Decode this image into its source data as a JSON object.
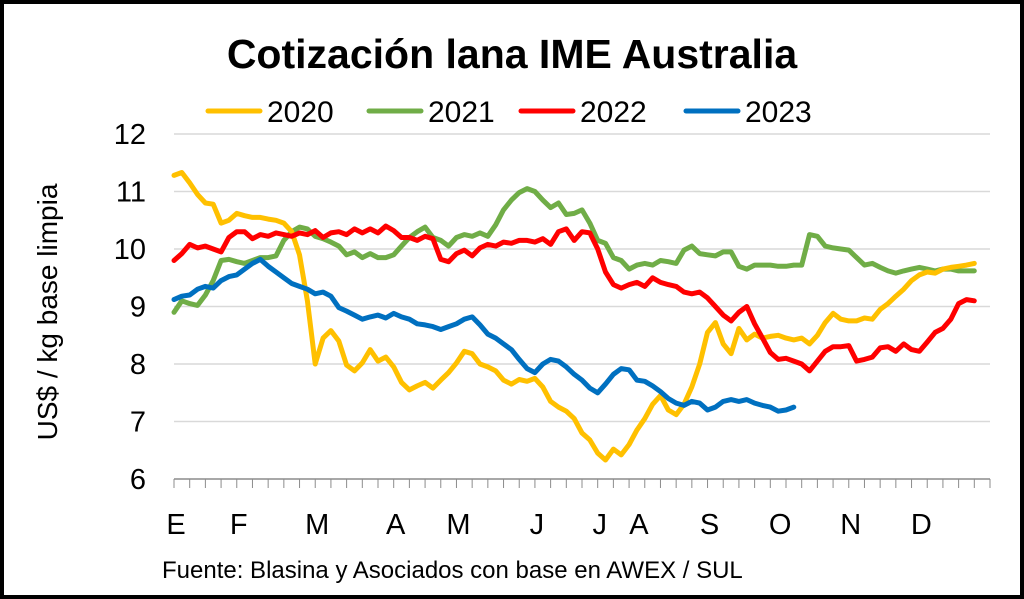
{
  "chart_data": {
    "type": "line",
    "title": "Cotización lana IME Australia",
    "ylabel": "US$ / kg base limpia",
    "xlabel": "",
    "source": "Fuente: Blasina y Asociados con base en AWEX / SUL",
    "ylim": [
      6,
      12
    ],
    "yticks": [
      "6",
      "7",
      "8",
      "9",
      "10",
      "11",
      "12"
    ],
    "xlim": [
      0,
      52
    ],
    "categories": [
      "E",
      "F",
      "M",
      "A",
      "M",
      "J",
      "J",
      "A",
      "S",
      "O",
      "N",
      "D"
    ],
    "category_weeks": [
      0,
      4,
      9,
      14,
      18,
      23,
      27,
      29.5,
      34,
      38.5,
      43,
      47.5
    ],
    "grid": true,
    "legend_position": "top",
    "series": [
      {
        "name": "2020",
        "color": "#FFC000",
        "x": [
          0,
          0.5,
          1,
          1.5,
          2,
          2.5,
          3,
          3.5,
          4,
          4.5,
          5,
          5.5,
          6,
          6.5,
          7,
          7.5,
          8,
          8.5,
          9,
          9.5,
          10,
          10.5,
          11,
          11.5,
          12,
          12.5,
          13,
          13.5,
          14,
          14.5,
          15,
          15.5,
          16,
          16.5,
          17,
          17.5,
          18,
          18.5,
          19,
          19.5,
          20,
          20.5,
          21,
          21.5,
          22,
          22.5,
          23,
          23.5,
          24,
          24.5,
          25,
          25.5,
          26,
          26.5,
          27,
          27.5,
          28,
          28.5,
          29,
          29.5,
          30,
          30.5,
          31,
          31.5,
          32,
          32.5,
          33,
          33.5,
          34,
          34.5,
          35,
          35.5,
          36,
          36.5,
          37,
          37.5,
          38,
          38.5,
          39,
          39.5,
          40,
          40.5,
          41,
          41.5,
          42,
          42.5,
          43,
          43.5,
          44,
          44.5,
          45,
          45.5,
          46,
          46.5,
          47,
          47.5,
          48,
          48.5,
          49,
          49.5,
          50,
          50.5,
          51
        ],
        "y": [
          11.28,
          11.33,
          11.15,
          10.95,
          10.8,
          10.78,
          10.45,
          10.5,
          10.62,
          10.58,
          10.55,
          10.55,
          10.52,
          10.5,
          10.45,
          10.3,
          9.9,
          9.1,
          8.0,
          8.45,
          8.58,
          8.4,
          7.98,
          7.88,
          8.02,
          8.25,
          8.05,
          8.12,
          7.95,
          7.68,
          7.55,
          7.62,
          7.68,
          7.58,
          7.72,
          7.85,
          8.02,
          8.22,
          8.18,
          8.0,
          7.95,
          7.88,
          7.72,
          7.65,
          7.73,
          7.7,
          7.75,
          7.6,
          7.35,
          7.25,
          7.18,
          7.05,
          6.8,
          6.68,
          6.45,
          6.33,
          6.52,
          6.42,
          6.6,
          6.85,
          7.05,
          7.3,
          7.45,
          7.2,
          7.12,
          7.3,
          7.6,
          8.0,
          8.55,
          8.72,
          8.35,
          8.18,
          8.62,
          8.42,
          8.52,
          8.45,
          8.48,
          8.5,
          8.45,
          8.42,
          8.45,
          8.35,
          8.5,
          8.72,
          8.88,
          8.78,
          8.75,
          8.75,
          8.8,
          8.78,
          8.95,
          9.05,
          9.18,
          9.3,
          9.45,
          9.55,
          9.6,
          9.58,
          9.65,
          9.68,
          9.7,
          9.72,
          9.75
        ]
      },
      {
        "name": "2021",
        "color": "#70AD47",
        "x": [
          0,
          0.5,
          1,
          1.5,
          2,
          2.5,
          3,
          3.5,
          4,
          4.5,
          5,
          5.5,
          6,
          6.5,
          7,
          7.5,
          8,
          8.5,
          9,
          9.5,
          10,
          10.5,
          11,
          11.5,
          12,
          12.5,
          13,
          13.5,
          14,
          14.5,
          15,
          15.5,
          16,
          16.5,
          17,
          17.5,
          18,
          18.5,
          19,
          19.5,
          20,
          20.5,
          21,
          21.5,
          22,
          22.5,
          23,
          23.5,
          24,
          24.5,
          25,
          25.5,
          26,
          26.5,
          27,
          27.5,
          28,
          28.5,
          29,
          29.5,
          30,
          30.5,
          31,
          31.5,
          32,
          32.5,
          33,
          33.5,
          34,
          34.5,
          35,
          35.5,
          36,
          36.5,
          37,
          37.5,
          38,
          38.5,
          39,
          39.5,
          40,
          40.5,
          41,
          41.5,
          42,
          42.5,
          43,
          43.5,
          44,
          44.5,
          45,
          45.5,
          46,
          46.5,
          47,
          47.5,
          48,
          48.5,
          49,
          49.5,
          50,
          50.5,
          51
        ],
        "y": [
          8.9,
          9.1,
          9.05,
          9.02,
          9.2,
          9.45,
          9.8,
          9.82,
          9.78,
          9.75,
          9.8,
          9.85,
          9.85,
          9.88,
          10.15,
          10.3,
          10.38,
          10.35,
          10.22,
          10.18,
          10.12,
          10.05,
          9.9,
          9.95,
          9.85,
          9.92,
          9.85,
          9.85,
          9.9,
          10.05,
          10.2,
          10.3,
          10.38,
          10.2,
          10.15,
          10.05,
          10.2,
          10.25,
          10.22,
          10.28,
          10.22,
          10.42,
          10.68,
          10.85,
          10.98,
          11.05,
          11.0,
          10.85,
          10.72,
          10.8,
          10.6,
          10.62,
          10.68,
          10.45,
          10.15,
          10.1,
          9.85,
          9.8,
          9.65,
          9.72,
          9.75,
          9.72,
          9.8,
          9.78,
          9.75,
          9.98,
          10.05,
          9.92,
          9.9,
          9.88,
          9.95,
          9.95,
          9.7,
          9.65,
          9.72,
          9.72,
          9.72,
          9.7,
          9.7,
          9.72,
          9.72,
          10.25,
          10.22,
          10.05,
          10.02,
          10.0,
          9.98,
          9.85,
          9.72,
          9.75,
          9.68,
          9.62,
          9.58,
          9.62,
          9.65,
          9.68,
          9.65,
          9.62,
          9.65,
          9.65,
          9.62,
          9.62,
          9.62
        ]
      },
      {
        "name": "2022",
        "color": "#FF0000",
        "x": [
          0,
          0.5,
          1,
          1.5,
          2,
          2.5,
          3,
          3.5,
          4,
          4.5,
          5,
          5.5,
          6,
          6.5,
          7,
          7.5,
          8,
          8.5,
          9,
          9.5,
          10,
          10.5,
          11,
          11.5,
          12,
          12.5,
          13,
          13.5,
          14,
          14.5,
          15,
          15.5,
          16,
          16.5,
          17,
          17.5,
          18,
          18.5,
          19,
          19.5,
          20,
          20.5,
          21,
          21.5,
          22,
          22.5,
          23,
          23.5,
          24,
          24.5,
          25,
          25.5,
          26,
          26.5,
          27,
          27.5,
          28,
          28.5,
          29,
          29.5,
          30,
          30.5,
          31,
          31.5,
          32,
          32.5,
          33,
          33.5,
          34,
          34.5,
          35,
          35.5,
          36,
          36.5,
          37,
          37.5,
          38,
          38.5,
          39,
          39.5,
          40,
          40.5,
          41,
          41.5,
          42,
          42.5,
          43,
          43.5,
          44,
          44.5,
          45,
          45.5,
          46,
          46.5,
          47,
          47.5,
          48,
          48.5,
          49,
          49.5,
          50,
          50.5,
          51
        ],
        "y": [
          9.8,
          9.92,
          10.08,
          10.02,
          10.05,
          10.0,
          9.95,
          10.2,
          10.3,
          10.3,
          10.18,
          10.25,
          10.22,
          10.28,
          10.25,
          10.22,
          10.28,
          10.25,
          10.32,
          10.2,
          10.28,
          10.3,
          10.25,
          10.35,
          10.28,
          10.35,
          10.28,
          10.4,
          10.32,
          10.2,
          10.2,
          10.15,
          10.22,
          10.18,
          9.82,
          9.78,
          9.92,
          9.98,
          9.88,
          10.02,
          10.08,
          10.05,
          10.12,
          10.1,
          10.15,
          10.15,
          10.12,
          10.18,
          10.08,
          10.3,
          10.35,
          10.15,
          10.3,
          10.28,
          10.0,
          9.6,
          9.38,
          9.32,
          9.38,
          9.42,
          9.35,
          9.5,
          9.42,
          9.38,
          9.35,
          9.25,
          9.22,
          9.25,
          9.15,
          9.0,
          8.85,
          8.75,
          8.9,
          9.0,
          8.7,
          8.45,
          8.2,
          8.08,
          8.1,
          8.05,
          8.0,
          7.88,
          8.05,
          8.22,
          8.3,
          8.3,
          8.32,
          8.05,
          8.08,
          8.12,
          8.28,
          8.3,
          8.22,
          8.35,
          8.25,
          8.22,
          8.38,
          8.55,
          8.62,
          8.78,
          9.05,
          9.12,
          9.1
        ]
      },
      {
        "name": "2023",
        "color": "#0070C0",
        "x": [
          0,
          0.5,
          1,
          1.5,
          2,
          2.5,
          3,
          3.5,
          4,
          4.5,
          5,
          5.5,
          6,
          6.5,
          7,
          7.5,
          8,
          8.5,
          9,
          9.5,
          10,
          10.5,
          11,
          11.5,
          12,
          12.5,
          13,
          13.5,
          14,
          14.5,
          15,
          15.5,
          16,
          16.5,
          17,
          17.5,
          18,
          18.5,
          19,
          19.5,
          20,
          20.5,
          21,
          21.5,
          22,
          22.5,
          23,
          23.5,
          24,
          24.5,
          25,
          25.5,
          26,
          26.5,
          27,
          27.5,
          28,
          28.5,
          29,
          29.5,
          30,
          30.5,
          31,
          31.5,
          32,
          32.5,
          33,
          33.5,
          34,
          34.5,
          35,
          35.5,
          36,
          36.5,
          37,
          37.5,
          38,
          38.5,
          39,
          39.5
        ],
        "y": [
          9.12,
          9.18,
          9.2,
          9.3,
          9.35,
          9.32,
          9.45,
          9.52,
          9.55,
          9.65,
          9.75,
          9.82,
          9.7,
          9.6,
          9.5,
          9.4,
          9.35,
          9.3,
          9.22,
          9.25,
          9.18,
          8.98,
          8.92,
          8.85,
          8.78,
          8.82,
          8.85,
          8.8,
          8.88,
          8.82,
          8.78,
          8.7,
          8.68,
          8.65,
          8.6,
          8.65,
          8.7,
          8.78,
          8.82,
          8.68,
          8.52,
          8.45,
          8.35,
          8.25,
          8.08,
          7.92,
          7.85,
          8.0,
          8.08,
          8.05,
          7.95,
          7.82,
          7.72,
          7.58,
          7.5,
          7.65,
          7.82,
          7.92,
          7.9,
          7.72,
          7.7,
          7.62,
          7.52,
          7.4,
          7.32,
          7.28,
          7.35,
          7.32,
          7.2,
          7.25,
          7.35,
          7.38,
          7.35,
          7.38,
          7.32,
          7.28,
          7.25,
          7.18,
          7.2,
          7.25
        ]
      }
    ]
  }
}
